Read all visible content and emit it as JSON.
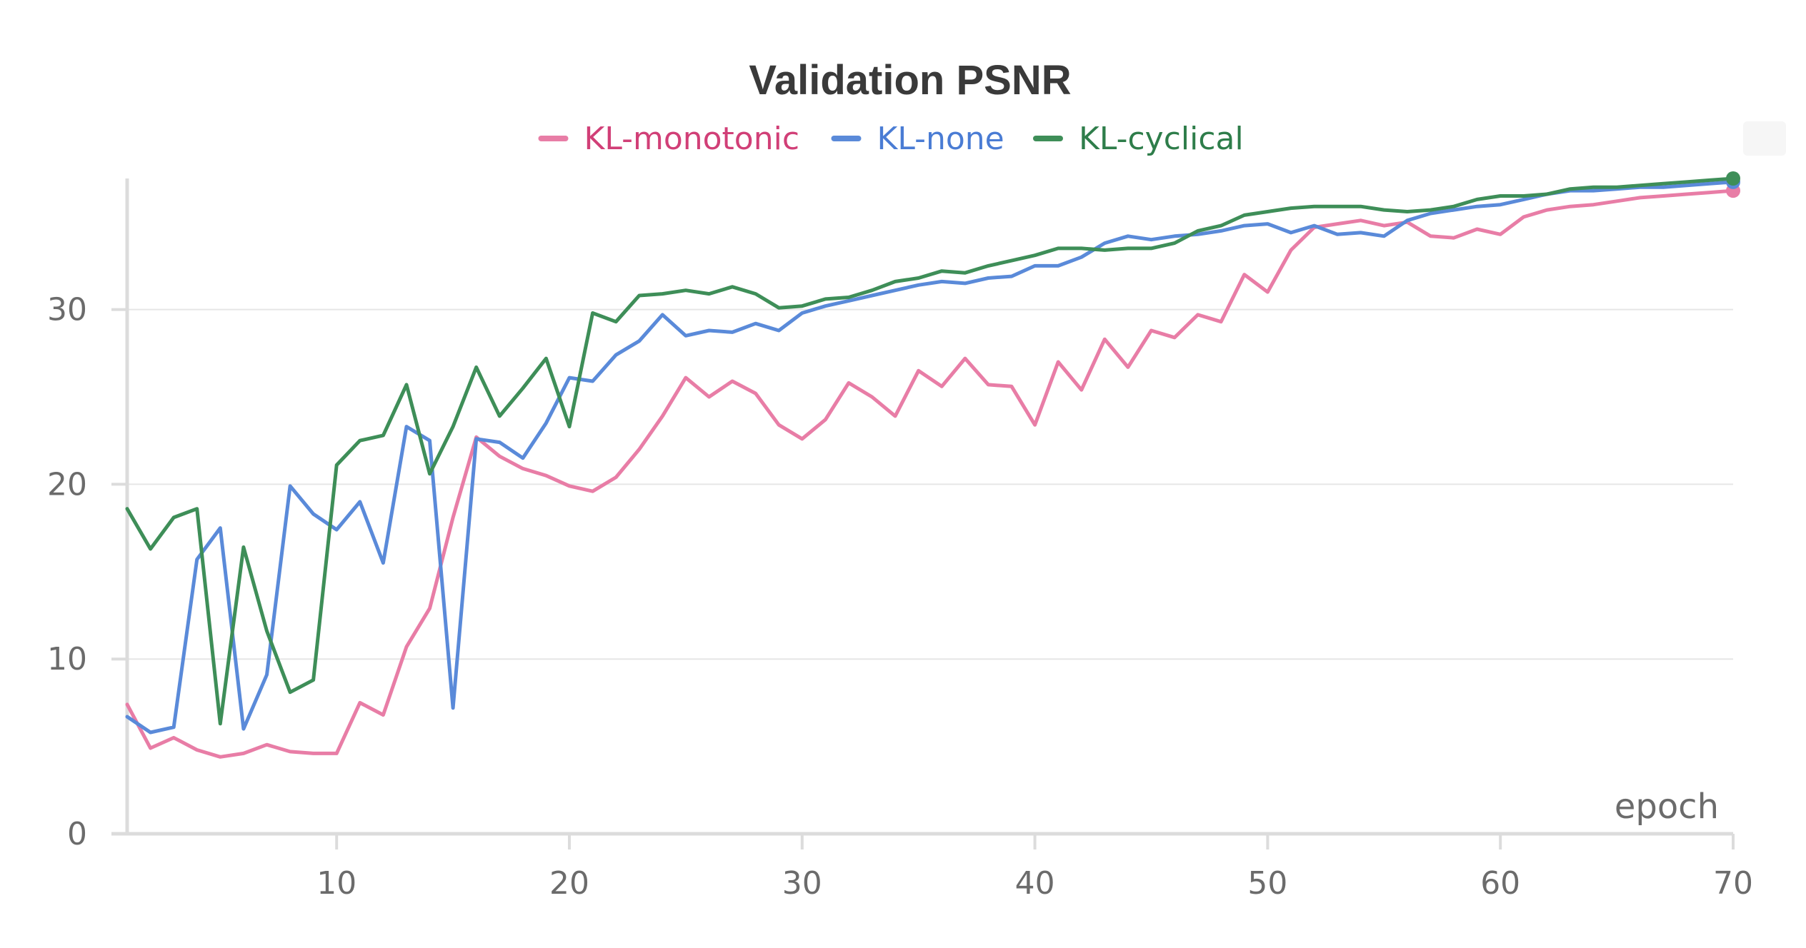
{
  "chart_data": {
    "type": "line",
    "title": "Validation PSNR",
    "xlabel": "epoch",
    "ylabel": "",
    "xlim": [
      1,
      70
    ],
    "ylim": [
      0,
      37.5
    ],
    "x_ticks": [
      10,
      20,
      30,
      40,
      50,
      60,
      70
    ],
    "y_ticks": [
      0,
      10,
      20,
      30
    ],
    "grid": true,
    "legend_position": "top",
    "x": [
      1,
      2,
      3,
      4,
      5,
      6,
      7,
      8,
      9,
      10,
      11,
      12,
      13,
      14,
      15,
      16,
      17,
      18,
      19,
      20,
      21,
      22,
      23,
      24,
      25,
      26,
      27,
      28,
      29,
      30,
      31,
      32,
      33,
      34,
      35,
      36,
      37,
      38,
      39,
      40,
      41,
      42,
      43,
      44,
      45,
      46,
      47,
      48,
      49,
      50,
      51,
      52,
      53,
      54,
      55,
      56,
      57,
      58,
      59,
      60,
      61,
      62,
      63,
      64,
      65,
      66,
      67,
      68,
      69,
      70
    ],
    "series": [
      {
        "name": "KL-monotonic",
        "color": "#e87da6",
        "label_color": "#d13f77",
        "values": [
          7.4,
          4.9,
          5.5,
          4.8,
          4.4,
          4.6,
          5.1,
          4.7,
          4.6,
          4.6,
          7.5,
          6.8,
          10.7,
          12.9,
          18.1,
          22.7,
          21.6,
          20.9,
          20.5,
          19.9,
          19.6,
          20.4,
          22.0,
          23.9,
          26.1,
          25.0,
          25.9,
          25.2,
          23.4,
          22.6,
          23.7,
          25.8,
          25.0,
          23.9,
          26.5,
          25.6,
          27.2,
          25.7,
          25.6,
          23.4,
          27.0,
          25.4,
          28.3,
          26.7,
          28.8,
          28.4,
          29.7,
          29.3,
          32.0,
          31.0,
          33.4,
          34.7,
          34.9,
          35.1,
          34.8,
          35.0,
          34.2,
          34.1,
          34.6,
          34.3,
          35.3,
          35.7,
          35.9,
          36.0,
          36.2,
          36.4,
          36.5,
          36.6,
          36.7,
          36.8
        ]
      },
      {
        "name": "KL-none",
        "color": "#5a8ad9",
        "label_color": "#4a7cd4",
        "values": [
          6.7,
          5.8,
          6.1,
          15.7,
          17.5,
          6.0,
          9.1,
          19.9,
          18.3,
          17.4,
          19.0,
          15.5,
          23.3,
          22.5,
          7.2,
          22.6,
          22.4,
          21.5,
          23.5,
          26.1,
          25.9,
          27.4,
          28.2,
          29.7,
          28.5,
          28.8,
          28.7,
          29.2,
          28.8,
          29.8,
          30.2,
          30.5,
          30.8,
          31.1,
          31.4,
          31.6,
          31.5,
          31.8,
          31.9,
          32.5,
          32.5,
          33.0,
          33.8,
          34.2,
          34.0,
          34.2,
          34.3,
          34.5,
          34.8,
          34.9,
          34.4,
          34.8,
          34.3,
          34.4,
          34.2,
          35.1,
          35.5,
          35.7,
          35.9,
          36.0,
          36.3,
          36.6,
          36.8,
          36.8,
          36.9,
          37.0,
          37.0,
          37.1,
          37.2,
          37.3
        ]
      },
      {
        "name": "KL-cyclical",
        "color": "#3e8e58",
        "label_color": "#2e7d4a",
        "values": [
          18.6,
          16.3,
          18.1,
          18.6,
          6.3,
          16.4,
          11.6,
          8.1,
          8.8,
          21.1,
          22.5,
          22.8,
          25.7,
          20.6,
          23.3,
          26.7,
          23.9,
          25.5,
          27.2,
          23.3,
          29.8,
          29.3,
          30.8,
          30.9,
          31.1,
          30.9,
          31.3,
          30.9,
          30.1,
          30.2,
          30.6,
          30.7,
          31.1,
          31.6,
          31.8,
          32.2,
          32.1,
          32.5,
          32.8,
          33.1,
          33.5,
          33.5,
          33.4,
          33.5,
          33.5,
          33.8,
          34.5,
          34.8,
          35.4,
          35.6,
          35.8,
          35.9,
          35.9,
          35.9,
          35.7,
          35.6,
          35.7,
          35.9,
          36.3,
          36.5,
          36.5,
          36.6,
          36.9,
          37.0,
          37.0,
          37.1,
          37.2,
          37.3,
          37.4,
          37.5
        ]
      }
    ]
  }
}
